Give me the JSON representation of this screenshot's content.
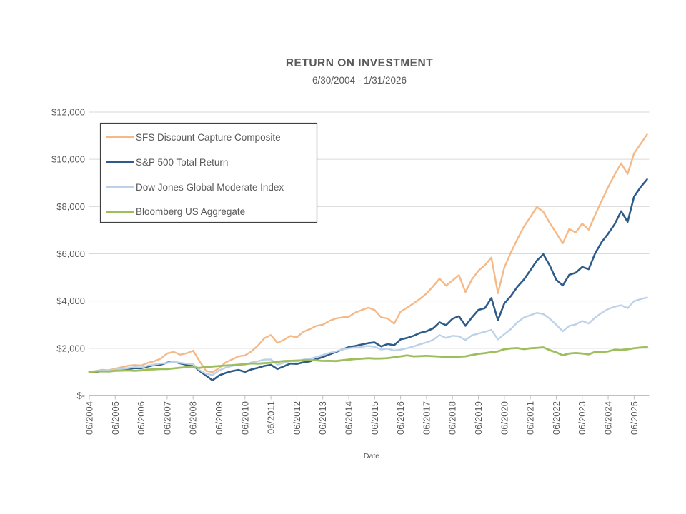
{
  "chart_data": {
    "type": "line",
    "title": "RETURN ON INVESTMENT",
    "subtitle": "6/30/2004 - 1/31/2026",
    "xlabel": "Date",
    "ylabel": "",
    "ylim": [
      0,
      12000
    ],
    "x_range_years": [
      2004.5,
      2026.0
    ],
    "grid": true,
    "legend_position": "top-left",
    "colors": {
      "text": "#595959",
      "grid": "#D9D9D9",
      "axis": "#BFBFBF",
      "legend_border": "#404040",
      "legend_bg": "#FFFFFF"
    },
    "y_ticks": [
      {
        "value": 0,
        "label": "$-"
      },
      {
        "value": 2000,
        "label": "$2,000"
      },
      {
        "value": 4000,
        "label": "$4,000"
      },
      {
        "value": 6000,
        "label": "$6,000"
      },
      {
        "value": 8000,
        "label": "$8,000"
      },
      {
        "value": 10000,
        "label": "$10,000"
      },
      {
        "value": 12000,
        "label": "$12,000"
      }
    ],
    "x_tick_labels": [
      "06/2004",
      "06/2005",
      "06/2006",
      "06/2007",
      "06/2008",
      "06/2009",
      "06/2010",
      "06/2011",
      "06/2012",
      "06/2013",
      "06/2014",
      "06/2015",
      "06/2016",
      "06/2017",
      "06/2018",
      "06/2019",
      "06/2020",
      "06/2021",
      "06/2022",
      "06/2023",
      "06/2024",
      "06/2025"
    ],
    "t0": 2004.5,
    "dt": 0.25,
    "series": [
      {
        "name": "SFS Discount Capture Composite",
        "color": "#F5B987",
        "width": 2.4,
        "values": [
          1000,
          1040,
          1090,
          1070,
          1140,
          1200,
          1260,
          1290,
          1270,
          1380,
          1450,
          1560,
          1780,
          1850,
          1730,
          1790,
          1900,
          1450,
          1040,
          990,
          1160,
          1400,
          1530,
          1660,
          1700,
          1870,
          2120,
          2430,
          2560,
          2230,
          2360,
          2520,
          2470,
          2700,
          2810,
          2950,
          3000,
          3160,
          3260,
          3310,
          3330,
          3510,
          3620,
          3720,
          3620,
          3310,
          3260,
          3040,
          3550,
          3720,
          3900,
          4100,
          4320,
          4620,
          4950,
          4650,
          4870,
          5100,
          4380,
          4920,
          5280,
          5520,
          5840,
          4330,
          5420,
          6050,
          6620,
          7150,
          7550,
          7980,
          7780,
          7300,
          6880,
          6440,
          7050,
          6900,
          7280,
          7020,
          7650,
          8250,
          8820,
          9350,
          9830,
          9380,
          10250,
          10650,
          11050
        ]
      },
      {
        "name": "S&P 500 Total Return",
        "color": "#2E5C8A",
        "width": 2.6,
        "values": [
          1000,
          985,
          1050,
          1030,
          1065,
          1105,
          1125,
          1160,
          1155,
          1225,
          1290,
          1305,
          1390,
          1445,
          1360,
          1300,
          1280,
          1040,
          840,
          645,
          850,
          955,
          1035,
          1085,
          1000,
          1105,
          1175,
          1255,
          1300,
          1125,
          1235,
          1355,
          1340,
          1405,
          1445,
          1545,
          1625,
          1735,
          1840,
          1950,
          2050,
          2100,
          2160,
          2220,
          2250,
          2080,
          2180,
          2130,
          2375,
          2440,
          2530,
          2650,
          2720,
          2840,
          3100,
          2980,
          3250,
          3360,
          2950,
          3310,
          3625,
          3700,
          4125,
          3190,
          3900,
          4210,
          4600,
          4910,
          5300,
          5710,
          5980,
          5500,
          4900,
          4660,
          5110,
          5200,
          5440,
          5350,
          6020,
          6500,
          6850,
          7250,
          7800,
          7350,
          8420,
          8820,
          9150
        ]
      },
      {
        "name": "Dow Jones Global Moderate Index",
        "color": "#BDD2E8",
        "width": 2.4,
        "values": [
          1000,
          1030,
          1070,
          1060,
          1095,
          1135,
          1165,
          1205,
          1185,
          1265,
          1315,
          1355,
          1375,
          1440,
          1385,
          1350,
          1320,
          1075,
          915,
          870,
          1060,
          1180,
          1250,
          1305,
          1310,
          1400,
          1455,
          1520,
          1530,
          1305,
          1385,
          1470,
          1440,
          1520,
          1560,
          1625,
          1720,
          1800,
          1870,
          1950,
          2000,
          2030,
          2060,
          2105,
          2060,
          1950,
          1985,
          1905,
          1940,
          2005,
          2080,
          2170,
          2250,
          2355,
          2560,
          2440,
          2530,
          2505,
          2350,
          2550,
          2625,
          2700,
          2780,
          2375,
          2600,
          2810,
          3100,
          3300,
          3400,
          3500,
          3450,
          3250,
          3000,
          2720,
          2950,
          3010,
          3160,
          3050,
          3300,
          3500,
          3660,
          3760,
          3820,
          3700,
          4000,
          4080,
          4150
        ]
      },
      {
        "name": "Bloomberg US Aggregate",
        "color": "#9EBE5B",
        "width": 2.8,
        "values": [
          1000,
          1020,
          1025,
          1020,
          1050,
          1055,
          1060,
          1050,
          1065,
          1100,
          1110,
          1120,
          1125,
          1150,
          1180,
          1200,
          1190,
          1170,
          1210,
          1230,
          1250,
          1270,
          1285,
          1305,
          1330,
          1360,
          1350,
          1370,
          1390,
          1430,
          1460,
          1470,
          1480,
          1490,
          1495,
          1490,
          1465,
          1470,
          1460,
          1490,
          1520,
          1545,
          1560,
          1580,
          1565,
          1570,
          1585,
          1620,
          1660,
          1700,
          1660,
          1670,
          1680,
          1665,
          1650,
          1630,
          1640,
          1645,
          1660,
          1715,
          1765,
          1795,
          1835,
          1870,
          1960,
          1995,
          2010,
          1965,
          2000,
          2015,
          2040,
          1920,
          1830,
          1705,
          1780,
          1800,
          1780,
          1745,
          1850,
          1840,
          1870,
          1940,
          1925,
          1960,
          2000,
          2030,
          2050
        ]
      }
    ]
  }
}
